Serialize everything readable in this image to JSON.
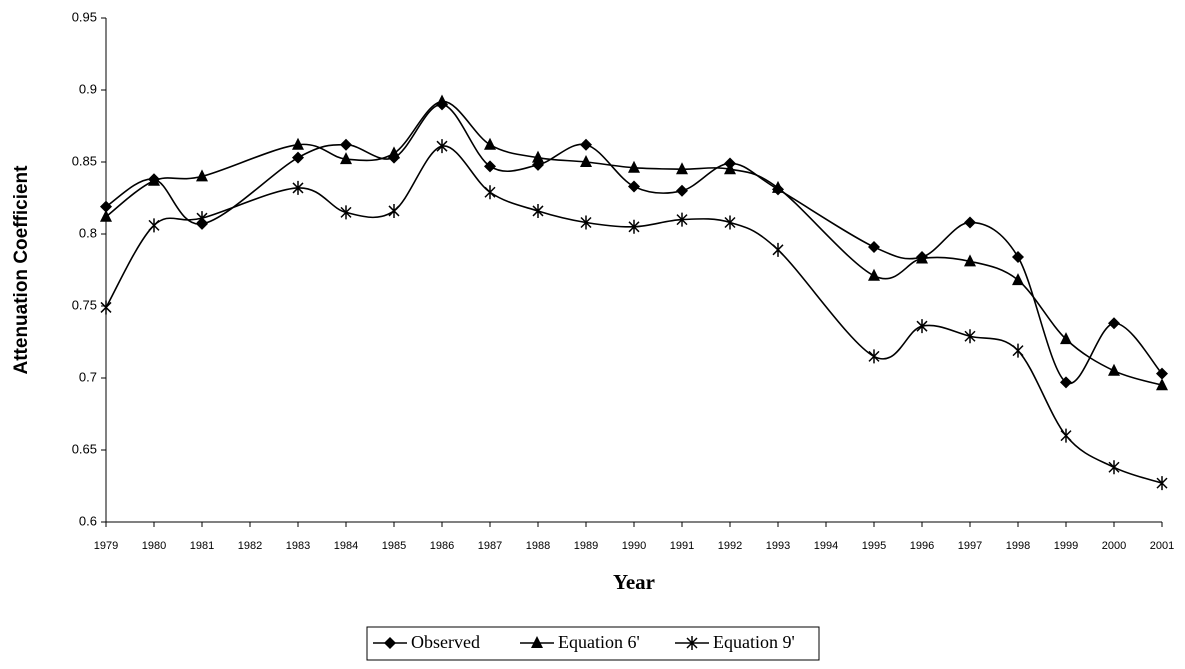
{
  "chart_data": {
    "type": "line",
    "x_label": "Year",
    "y_label": "Attenuation Coefficient",
    "x": [
      1979,
      1980,
      1981,
      1983,
      1984,
      1985,
      1986,
      1987,
      1988,
      1989,
      1990,
      1991,
      1992,
      1993,
      1995,
      1996,
      1997,
      1998,
      1999,
      2000,
      2001
    ],
    "series": [
      {
        "name": "Observed",
        "color": "#000000",
        "marker": "diamond",
        "values": [
          0.819,
          0.838,
          0.807,
          0.853,
          0.862,
          0.853,
          0.89,
          0.847,
          0.848,
          0.862,
          0.833,
          0.83,
          0.849,
          0.831,
          0.791,
          0.784,
          0.808,
          0.784,
          0.697,
          0.738,
          0.703
        ]
      },
      {
        "name": "Equation 6'",
        "color": "#000000",
        "marker": "triangle",
        "values": [
          0.812,
          0.837,
          0.84,
          0.862,
          0.852,
          0.856,
          0.892,
          0.862,
          0.853,
          0.85,
          0.846,
          0.845,
          0.845,
          0.832,
          0.771,
          0.783,
          0.781,
          0.768,
          0.727,
          0.705,
          0.695
        ]
      },
      {
        "name": "Equation 9'",
        "color": "#000000",
        "marker": "asterisk",
        "values": [
          0.749,
          0.806,
          0.811,
          0.832,
          0.815,
          0.816,
          0.861,
          0.829,
          0.816,
          0.808,
          0.805,
          0.81,
          0.808,
          0.789,
          0.715,
          0.736,
          0.729,
          0.719,
          0.66,
          0.638,
          0.627
        ]
      }
    ],
    "xlim": [
      1979,
      2001
    ],
    "xticks": [
      1979,
      1980,
      1981,
      1982,
      1983,
      1984,
      1985,
      1986,
      1987,
      1988,
      1989,
      1990,
      1991,
      1992,
      1993,
      1994,
      1995,
      1996,
      1997,
      1998,
      1999,
      2000,
      2001
    ],
    "ylim": [
      0.6,
      0.95
    ],
    "yticks": [
      0.6,
      0.65,
      0.7,
      0.75,
      0.8,
      0.85,
      0.9,
      0.95
    ],
    "legend": "bottom"
  }
}
